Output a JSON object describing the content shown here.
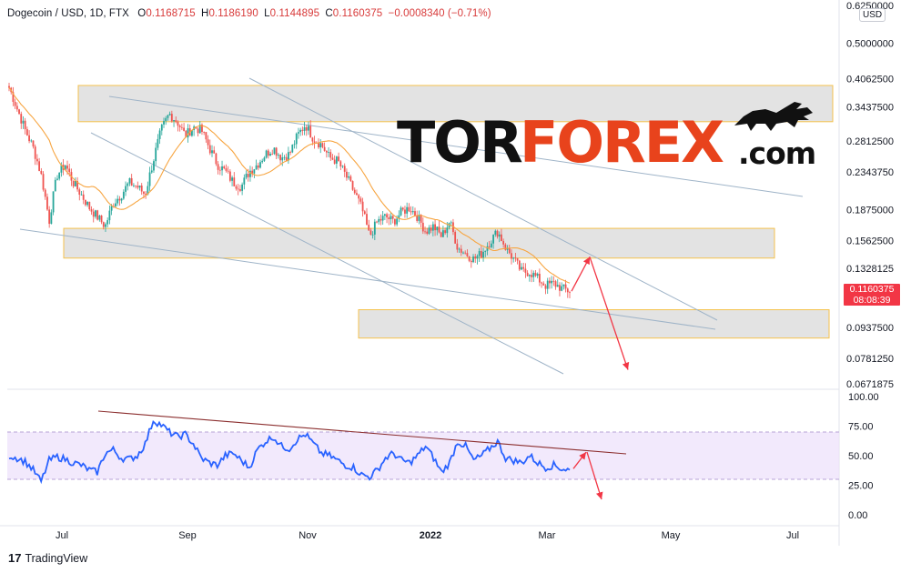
{
  "header": {
    "symbol": "Dogecoin / USD, 1D, FTX",
    "open_label": "O",
    "open": "0.1168715",
    "high_label": "H",
    "high": "0.1186190",
    "low_label": "L",
    "low": "0.1144895",
    "close_label": "C",
    "close": "0.1160375",
    "change": "−0.0008340 (−0.71%)"
  },
  "currency_badge": "USD",
  "current_price": {
    "price": "0.1160375",
    "countdown": "08:08:39"
  },
  "logo": {
    "part1": "TOR",
    "part2": "FOREX",
    "part3": ".com"
  },
  "branding": {
    "text": "TradingView",
    "mark": "17"
  },
  "colors": {
    "up": "#26a69a",
    "down": "#ef5350",
    "ma": "#f7a541",
    "rsi": "#2962ff",
    "zone": "#e0e0e0",
    "zone_border": "#f5c24c",
    "arrow": "#f23645",
    "trend": "#9fb4c8",
    "rsi_trend": "#8b2e2e"
  },
  "chart_data": [
    {
      "type": "candlestick",
      "x_axis": {
        "tick_labels": [
          "Jul",
          "Sep",
          "Nov",
          "2022",
          "Mar",
          "May",
          "Jul"
        ]
      },
      "y_axis": {
        "scale": "log",
        "range": [
          0.0672,
          0.625
        ],
        "tick_labels": [
          "0.6250000",
          "0.5000000",
          "0.4062500",
          "0.3437500",
          "0.2812500",
          "0.2343750",
          "0.1875000",
          "0.1562500",
          "0.1328125",
          "0.0937500",
          "0.0781250",
          "0.0671875"
        ]
      },
      "close_path": [
        0.385,
        0.34,
        0.3,
        0.27,
        0.23,
        0.175,
        0.23,
        0.245,
        0.22,
        0.205,
        0.19,
        0.18,
        0.17,
        0.195,
        0.205,
        0.22,
        0.215,
        0.205,
        0.25,
        0.3,
        0.33,
        0.315,
        0.29,
        0.305,
        0.3,
        0.27,
        0.245,
        0.235,
        0.22,
        0.215,
        0.235,
        0.245,
        0.26,
        0.27,
        0.255,
        0.26,
        0.29,
        0.31,
        0.285,
        0.275,
        0.255,
        0.25,
        0.23,
        0.21,
        0.19,
        0.16,
        0.175,
        0.18,
        0.175,
        0.185,
        0.19,
        0.18,
        0.165,
        0.17,
        0.16,
        0.175,
        0.15,
        0.145,
        0.14,
        0.145,
        0.155,
        0.165,
        0.15,
        0.14,
        0.13,
        0.13,
        0.125,
        0.12,
        0.1215,
        0.118,
        0.116
      ],
      "annotations": {
        "zones": [
          {
            "top": 0.39,
            "bottom": 0.315
          },
          {
            "top": 0.168,
            "bottom": 0.141
          },
          {
            "top": 0.104,
            "bottom": 0.088
          }
        ],
        "arrows": [
          {
            "from_price": 0.116,
            "to_price": 0.142
          },
          {
            "from_price": 0.142,
            "to_price": 0.073
          }
        ]
      }
    },
    {
      "type": "line",
      "name": "RSI",
      "y_axis": {
        "range": [
          0,
          100
        ],
        "tick_labels": [
          "100.00",
          "75.00",
          "50.00",
          "25.00",
          "0.00"
        ]
      },
      "band": [
        30,
        70
      ],
      "values": [
        50,
        48,
        45,
        38,
        28,
        46,
        49,
        47,
        44,
        42,
        38,
        36,
        52,
        55,
        48,
        47,
        50,
        60,
        80,
        76,
        70,
        66,
        68,
        60,
        48,
        44,
        42,
        50,
        52,
        46,
        40,
        55,
        62,
        66,
        58,
        56,
        64,
        68,
        60,
        52,
        50,
        46,
        42,
        40,
        34,
        32,
        38,
        48,
        52,
        46,
        44,
        50,
        58,
        48,
        36,
        44,
        62,
        58,
        46,
        50,
        56,
        62,
        48,
        46,
        44,
        50,
        44,
        40,
        42,
        39,
        38
      ]
    }
  ]
}
